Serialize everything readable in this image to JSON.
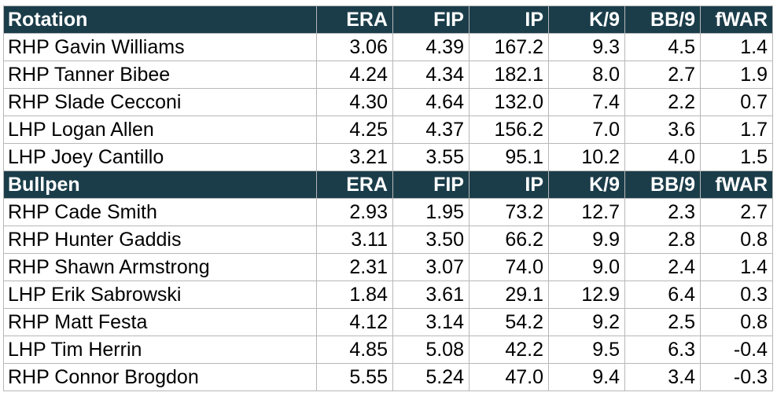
{
  "colors": {
    "header_bg": "#1b3d4a",
    "header_text": "#ffffff",
    "grid": "#b7b7b7"
  },
  "columns": [
    "ERA",
    "FIP",
    "IP",
    "K/9",
    "BB/9",
    "fWAR"
  ],
  "sections": [
    {
      "title": "Rotation",
      "rows": [
        [
          "RHP Gavin Williams",
          "3.06",
          "4.39",
          "167.2",
          "9.3",
          "4.5",
          "1.4"
        ],
        [
          "RHP Tanner Bibee",
          "4.24",
          "4.34",
          "182.1",
          "8.0",
          "2.7",
          "1.9"
        ],
        [
          "RHP Slade Cecconi",
          "4.30",
          "4.64",
          "132.0",
          "7.4",
          "2.2",
          "0.7"
        ],
        [
          "LHP Logan Allen",
          "4.25",
          "4.37",
          "156.2",
          "7.0",
          "3.6",
          "1.7"
        ],
        [
          "LHP Joey Cantillo",
          "3.21",
          "3.55",
          "95.1",
          "10.2",
          "4.0",
          "1.5"
        ]
      ]
    },
    {
      "title": "Bullpen",
      "rows": [
        [
          "RHP Cade Smith",
          "2.93",
          "1.95",
          "73.2",
          "12.7",
          "2.3",
          "2.7"
        ],
        [
          "RHP Hunter Gaddis",
          "3.11",
          "3.50",
          "66.2",
          "9.9",
          "2.8",
          "0.8"
        ],
        [
          "RHP Shawn Armstrong",
          "2.31",
          "3.07",
          "74.0",
          "9.0",
          "2.4",
          "1.4"
        ],
        [
          "LHP Erik Sabrowski",
          "1.84",
          "3.61",
          "29.1",
          "12.9",
          "6.4",
          "0.3"
        ],
        [
          "RHP Matt Festa",
          "4.12",
          "3.14",
          "54.2",
          "9.2",
          "2.5",
          "0.8"
        ],
        [
          "LHP Tim Herrin",
          "4.85",
          "5.08",
          "42.2",
          "9.5",
          "6.3",
          "-0.4"
        ],
        [
          "RHP Connor Brogdon",
          "5.55",
          "5.24",
          "47.0",
          "9.4",
          "3.4",
          "-0.3"
        ]
      ]
    }
  ]
}
